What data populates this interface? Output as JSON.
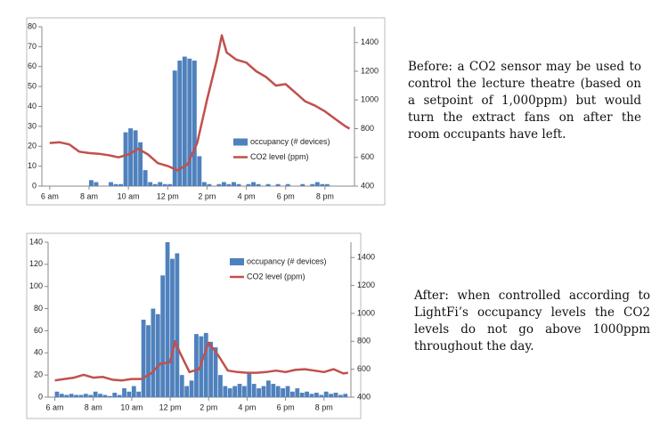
{
  "chart_data": [
    {
      "type": "bar",
      "xlim": [
        5.6,
        21.5
      ],
      "xticks": [
        {
          "value": 6,
          "label": "6 am"
        },
        {
          "value": 8,
          "label": "8 am"
        },
        {
          "value": 10,
          "label": "10 am"
        },
        {
          "value": 12,
          "label": "12 pm"
        },
        {
          "value": 14,
          "label": "2 pm"
        },
        {
          "value": 16,
          "label": "4 pm"
        },
        {
          "value": 18,
          "label": "6 pm"
        },
        {
          "value": 20,
          "label": "8 pm"
        }
      ],
      "ylim": [
        0,
        80
      ],
      "yticks": [
        0,
        10,
        20,
        30,
        40,
        50,
        60,
        70,
        80
      ],
      "y2lim": [
        400,
        1510
      ],
      "y2ticks": [
        400,
        600,
        800,
        1000,
        1200,
        1400
      ],
      "legend": "center-right",
      "series": [
        {
          "name": "occupancy (# devices)",
          "type": "bar",
          "color": "#4f81bd",
          "width": 0.25,
          "x": [
            6,
            6.25,
            6.5,
            6.75,
            7,
            7.25,
            7.5,
            7.75,
            8,
            8.25,
            8.5,
            8.75,
            9,
            9.25,
            9.5,
            9.75,
            10,
            10.25,
            10.5,
            10.75,
            11,
            11.25,
            11.5,
            11.75,
            12,
            12.25,
            12.5,
            12.75,
            13,
            13.25,
            13.5,
            13.75,
            14,
            14.25,
            14.5,
            14.75,
            15,
            15.25,
            15.5,
            15.75,
            16,
            16.25,
            16.5,
            16.75,
            17,
            17.25,
            17.5,
            17.75,
            18,
            18.25,
            18.5,
            18.75,
            19,
            19.25,
            19.5,
            19.75,
            20,
            20.25,
            20.5,
            20.75,
            21
          ],
          "values": [
            0,
            0,
            0,
            0,
            0,
            0,
            0,
            0,
            3,
            2,
            0,
            0,
            2,
            1,
            1,
            27,
            29,
            28,
            22,
            8,
            2,
            1,
            2,
            1,
            1,
            58,
            63,
            65,
            64,
            63,
            15,
            2,
            1,
            0,
            1,
            2,
            1,
            2,
            1,
            0,
            1,
            2,
            1,
            0,
            1,
            0,
            1,
            0,
            1,
            0,
            0,
            1,
            0,
            1,
            2,
            1,
            1,
            0,
            0,
            0,
            0
          ]
        },
        {
          "name": "CO2 level (ppm)",
          "type": "line",
          "axis": "y2",
          "color": "#c0504d",
          "x": [
            6,
            6.5,
            7,
            7.5,
            8,
            8.5,
            9,
            9.5,
            10,
            10.5,
            11,
            11.5,
            12,
            12.5,
            13,
            13.5,
            14,
            14.5,
            14.75,
            15,
            15.5,
            16,
            16.5,
            17,
            17.5,
            18,
            18.5,
            19,
            19.5,
            20,
            20.5,
            21,
            21.25
          ],
          "values": [
            700,
            705,
            690,
            640,
            630,
            625,
            615,
            600,
            620,
            660,
            620,
            560,
            540,
            510,
            550,
            700,
            1000,
            1280,
            1450,
            1330,
            1280,
            1260,
            1200,
            1160,
            1100,
            1110,
            1050,
            990,
            960,
            920,
            870,
            820,
            800
          ]
        }
      ]
    },
    {
      "type": "bar",
      "xlim": [
        5.65,
        21.4
      ],
      "xticks": [
        {
          "value": 6,
          "label": "6 am"
        },
        {
          "value": 8,
          "label": "8 am"
        },
        {
          "value": 10,
          "label": "10 am"
        },
        {
          "value": 12,
          "label": "12 pm"
        },
        {
          "value": 14,
          "label": "2 pm"
        },
        {
          "value": 16,
          "label": "4 pm"
        },
        {
          "value": 18,
          "label": "6 pm"
        },
        {
          "value": 20,
          "label": "8 pm"
        }
      ],
      "ylim": [
        0,
        140
      ],
      "yticks": [
        0,
        20,
        40,
        60,
        80,
        100,
        120,
        140
      ],
      "y2lim": [
        400,
        1510
      ],
      "y2ticks": [
        400,
        600,
        800,
        1000,
        1200,
        1400
      ],
      "legend": "top-right",
      "series": [
        {
          "name": "occupancy (# devices)",
          "type": "bar",
          "color": "#4f81bd",
          "width": 0.25,
          "x": [
            6,
            6.25,
            6.5,
            6.75,
            7,
            7.25,
            7.5,
            7.75,
            8,
            8.25,
            8.5,
            8.75,
            9,
            9.25,
            9.5,
            9.75,
            10,
            10.25,
            10.5,
            10.75,
            11,
            11.25,
            11.5,
            11.75,
            12,
            12.25,
            12.5,
            12.75,
            13,
            13.25,
            13.5,
            13.75,
            14,
            14.25,
            14.5,
            14.75,
            15,
            15.25,
            15.5,
            15.75,
            16,
            16.25,
            16.5,
            16.75,
            17,
            17.25,
            17.5,
            17.75,
            18,
            18.25,
            18.5,
            18.75,
            19,
            19.25,
            19.5,
            19.75,
            20,
            20.25,
            20.5,
            20.75,
            21
          ],
          "values": [
            5,
            3,
            2,
            3,
            2,
            2,
            3,
            2,
            5,
            3,
            2,
            1,
            4,
            2,
            8,
            5,
            10,
            5,
            70,
            65,
            80,
            75,
            110,
            140,
            125,
            130,
            20,
            10,
            15,
            57,
            55,
            58,
            50,
            45,
            20,
            10,
            8,
            10,
            12,
            10,
            22,
            12,
            8,
            10,
            15,
            12,
            10,
            8,
            10,
            5,
            8,
            4,
            5,
            3,
            4,
            2,
            5,
            3,
            4,
            2,
            3
          ]
        },
        {
          "name": "CO2 level (ppm)",
          "type": "line",
          "axis": "y2",
          "color": "#c0504d",
          "x": [
            6,
            6.5,
            7,
            7.5,
            8,
            8.5,
            9,
            9.5,
            10,
            10.5,
            11,
            11.5,
            12,
            12.25,
            12.5,
            13,
            13.5,
            14,
            14.5,
            15,
            15.5,
            16,
            16.5,
            17,
            17.5,
            18,
            18.5,
            19,
            19.5,
            20,
            20.5,
            21,
            21.25
          ],
          "values": [
            520,
            530,
            540,
            560,
            540,
            545,
            525,
            520,
            530,
            530,
            570,
            640,
            650,
            800,
            720,
            580,
            600,
            790,
            700,
            590,
            580,
            575,
            575,
            580,
            590,
            580,
            595,
            600,
            590,
            580,
            600,
            570,
            575
          ]
        }
      ]
    }
  ],
  "captions": [
    "Before: a CO2 sensor may be used to control the lecture theatre (based on a setpoint of 1,000ppm) but would turn the extract fans on after the room occupants have left.",
    "After: when controlled according to LightFi’s occupancy levels the CO2 levels do not go above 1000ppm throughout the day."
  ]
}
